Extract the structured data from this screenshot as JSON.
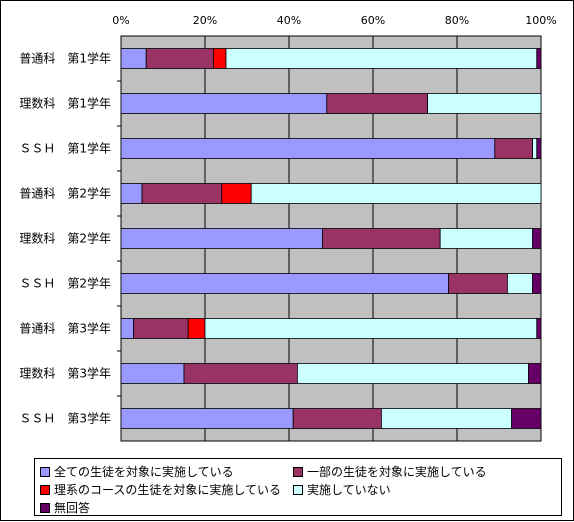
{
  "chart_data": {
    "type": "bar",
    "orientation": "horizontal",
    "stacked": true,
    "percent": true,
    "title": "",
    "xlabel": "",
    "ylabel": "",
    "xlim": [
      0,
      100
    ],
    "x_ticks": [
      "0%",
      "20%",
      "40%",
      "60%",
      "80%",
      "100%"
    ],
    "categories": [
      "普通科　第1学年",
      "理数科　第1学年",
      "ＳＳＨ　第1学年",
      "普通科　第2学年",
      "理数科　第2学年",
      "ＳＳＨ　第2学年",
      "普通科　第3学年",
      "理数科　第3学年",
      "ＳＳＨ　第3学年"
    ],
    "series": [
      {
        "name": "全ての生徒を対象に実施している",
        "color": "#9999FF",
        "values": [
          6,
          49,
          89,
          5,
          48,
          78,
          3,
          15,
          41
        ]
      },
      {
        "name": "一部の生徒を対象に実施している",
        "color": "#993366",
        "values": [
          16,
          24,
          9,
          19,
          28,
          14,
          13,
          27,
          21
        ]
      },
      {
        "name": "理系のコースの生徒を対象に実施している",
        "color": "#FF0000",
        "values": [
          3,
          0,
          0,
          7,
          0,
          0,
          4,
          0,
          0
        ]
      },
      {
        "name": "実施していない",
        "color": "#CCFFFF",
        "values": [
          74,
          27,
          1,
          69,
          22,
          6,
          79,
          55,
          31
        ]
      },
      {
        "name": "無回答",
        "color": "#660066",
        "values": [
          1,
          0,
          1,
          0,
          2,
          2,
          1,
          3,
          7
        ]
      }
    ],
    "grid": true,
    "plot_background": "#C0C0C0",
    "legend_position": "bottom"
  }
}
